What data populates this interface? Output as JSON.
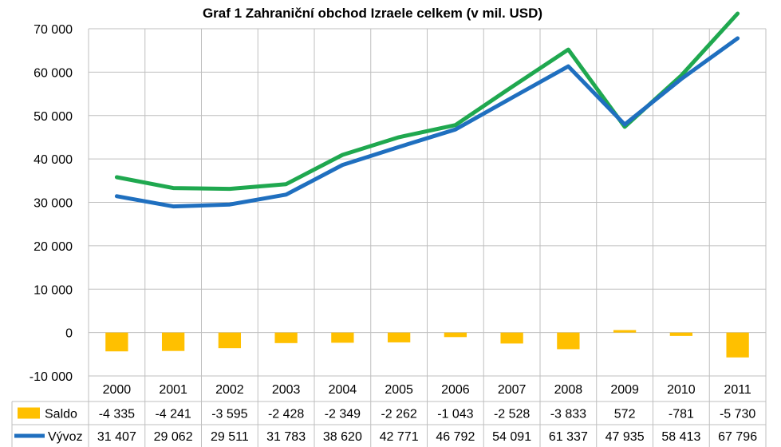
{
  "chart_data": {
    "type": "line",
    "title": "Graf 1 Zahraniční obchod Izraele celkem (v mil. USD)",
    "categories": [
      "2000",
      "2001",
      "2002",
      "2003",
      "2004",
      "2005",
      "2006",
      "2007",
      "2008",
      "2009",
      "2010",
      "2011"
    ],
    "ylim": [
      -10000,
      70000
    ],
    "yticks": [
      -10000,
      0,
      10000,
      20000,
      30000,
      40000,
      50000,
      60000,
      70000
    ],
    "ytick_labels": [
      "-10 000",
      "0",
      "10 000",
      "20 000",
      "30 000",
      "40 000",
      "50 000",
      "60 000",
      "70 000"
    ],
    "grid": true,
    "series": [
      {
        "name": "Saldo",
        "type": "bar",
        "color": "#FFC000",
        "values": [
          -4335,
          -4241,
          -3595,
          -2428,
          -2349,
          -2262,
          -1043,
          -2528,
          -3833,
          572,
          -781,
          -5730
        ],
        "labels": [
          "-4 335",
          "-4 241",
          "-3 595",
          "-2 428",
          "-2 349",
          "-2 262",
          "-1 043",
          "-2 528",
          "-3 833",
          "572",
          "-781",
          "-5 730"
        ]
      },
      {
        "name": "Vývoz",
        "type": "line",
        "color": "#1F6FBF",
        "values": [
          31407,
          29062,
          29511,
          31783,
          38620,
          42771,
          46792,
          54091,
          61337,
          47935,
          58413,
          67796
        ],
        "labels": [
          "31 407",
          "29 062",
          "29 511",
          "31 783",
          "38 620",
          "42 771",
          "46 792",
          "54 091",
          "61 337",
          "47 935",
          "58 413",
          "67 796"
        ]
      },
      {
        "name": "",
        "type": "line",
        "color": "#1FA84F",
        "values": [
          35800,
          33300,
          33100,
          34200,
          40950,
          45000,
          47800,
          56600,
          65200,
          47400,
          59200,
          73500
        ]
      }
    ]
  }
}
